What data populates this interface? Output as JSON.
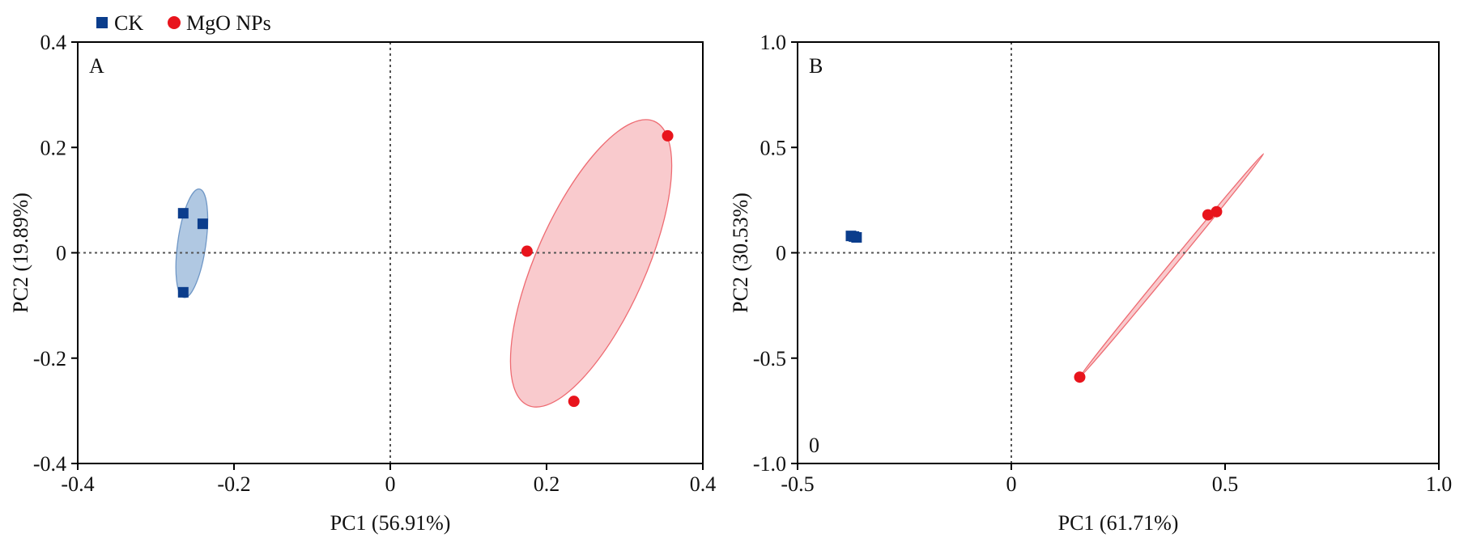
{
  "legend": {
    "entries": [
      {
        "label": "CK",
        "color": "#0b3d8c",
        "marker": "square"
      },
      {
        "label": "MgO NPs",
        "color": "#e8141c",
        "marker": "circle"
      }
    ],
    "placement": "top-left"
  },
  "chart_data": [
    {
      "type": "scatter",
      "panel_label": "A",
      "xlabel": "PC1 (56.91%)",
      "ylabel": "PC2 (19.89%)",
      "xlim": [
        -0.4,
        0.4
      ],
      "ylim": [
        -0.4,
        0.4
      ],
      "xticks": [
        "-0.4",
        "-0.2",
        "0",
        "0.2",
        "0.4"
      ],
      "yticks": [
        "-0.4",
        "-0.2",
        "0",
        "0.2",
        "0.4"
      ],
      "reference_lines": {
        "x": 0,
        "y": 0,
        "style": "dotted"
      },
      "series": [
        {
          "name": "CK",
          "color": "#0b3d8c",
          "marker": "square",
          "points": [
            [
              -0.265,
              0.075
            ],
            [
              -0.24,
              0.055
            ],
            [
              -0.265,
              -0.075
            ]
          ],
          "ellipse": {
            "color": "#8fb0d6",
            "cx": -0.254,
            "cy": 0.018,
            "rx": 0.018,
            "ry": 0.104,
            "angle_deg": 8
          }
        },
        {
          "name": "MgO NPs",
          "color": "#e8141c",
          "marker": "circle",
          "points": [
            [
              0.355,
              0.222
            ],
            [
              0.175,
              0.003
            ],
            [
              0.235,
              -0.282
            ]
          ],
          "ellipse": {
            "color": "#f7b3b8",
            "cx": 0.257,
            "cy": -0.02,
            "rx": 0.07,
            "ry": 0.295,
            "angle_deg": 24
          }
        }
      ]
    },
    {
      "type": "scatter",
      "panel_label": "B",
      "corner_annotation": "0",
      "xlabel": "PC1 (61.71%)",
      "ylabel": "PC2 (30.53%)",
      "xlim": [
        -0.5,
        1.0
      ],
      "ylim": [
        -1.0,
        1.0
      ],
      "xticks": [
        "-0.5",
        "0",
        "0.5",
        "1.0"
      ],
      "yticks": [
        "-1.0",
        "-0.5",
        "0",
        "0.5",
        "1.0"
      ],
      "reference_lines": {
        "x": 0,
        "y": 0,
        "style": "dotted"
      },
      "series": [
        {
          "name": "CK",
          "color": "#0b3d8c",
          "marker": "square",
          "points": [
            [
              -0.375,
              0.08
            ],
            [
              -0.362,
              0.073
            ],
            [
              -0.368,
              0.077
            ]
          ]
        },
        {
          "name": "MgO NPs",
          "color": "#e8141c",
          "marker": "circle",
          "points": [
            [
              0.46,
              0.18
            ],
            [
              0.48,
              0.195
            ],
            [
              0.16,
              -0.59
            ]
          ],
          "ellipse": {
            "color": "#f7b3b8",
            "cx": 0.37,
            "cy": -0.05,
            "rx": 0.545,
            "ry": 0.006,
            "angle_deg": 0
          }
        }
      ]
    }
  ]
}
